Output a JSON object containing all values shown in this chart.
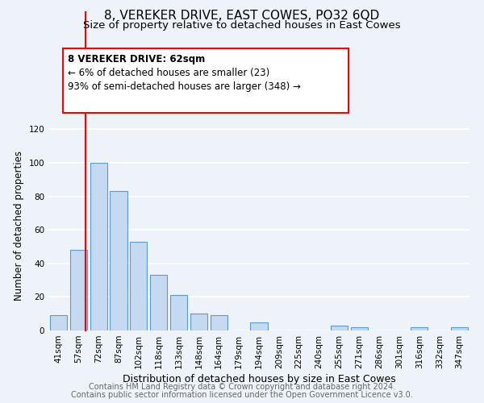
{
  "title": "8, VEREKER DRIVE, EAST COWES, PO32 6QD",
  "subtitle": "Size of property relative to detached houses in East Cowes",
  "xlabel": "Distribution of detached houses by size in East Cowes",
  "ylabel": "Number of detached properties",
  "bar_color": "#c5d9f0",
  "bar_edge_color": "#5b9bd5",
  "categories": [
    "41sqm",
    "57sqm",
    "72sqm",
    "87sqm",
    "102sqm",
    "118sqm",
    "133sqm",
    "148sqm",
    "164sqm",
    "179sqm",
    "194sqm",
    "209sqm",
    "225sqm",
    "240sqm",
    "255sqm",
    "271sqm",
    "286sqm",
    "301sqm",
    "316sqm",
    "332sqm",
    "347sqm"
  ],
  "values": [
    9,
    48,
    100,
    83,
    53,
    33,
    21,
    10,
    9,
    0,
    5,
    0,
    0,
    0,
    3,
    2,
    0,
    0,
    2,
    0,
    2
  ],
  "ylim": [
    0,
    125
  ],
  "yticks": [
    0,
    20,
    40,
    60,
    80,
    100,
    120
  ],
  "annotation_title": "8 VEREKER DRIVE: 62sqm",
  "annotation_line1": "← 6% of detached houses are smaller (23)",
  "annotation_line2": "93% of semi-detached houses are larger (348) →",
  "footer_line1": "Contains HM Land Registry data © Crown copyright and database right 2024.",
  "footer_line2": "Contains public sector information licensed under the Open Government Licence v3.0.",
  "background_color": "#eef2f9",
  "grid_color": "#ffffff",
  "title_fontsize": 11,
  "subtitle_fontsize": 9.5,
  "xlabel_fontsize": 9,
  "ylabel_fontsize": 8.5,
  "tick_fontsize": 7.5,
  "annotation_fontsize": 8.5,
  "footer_fontsize": 7
}
